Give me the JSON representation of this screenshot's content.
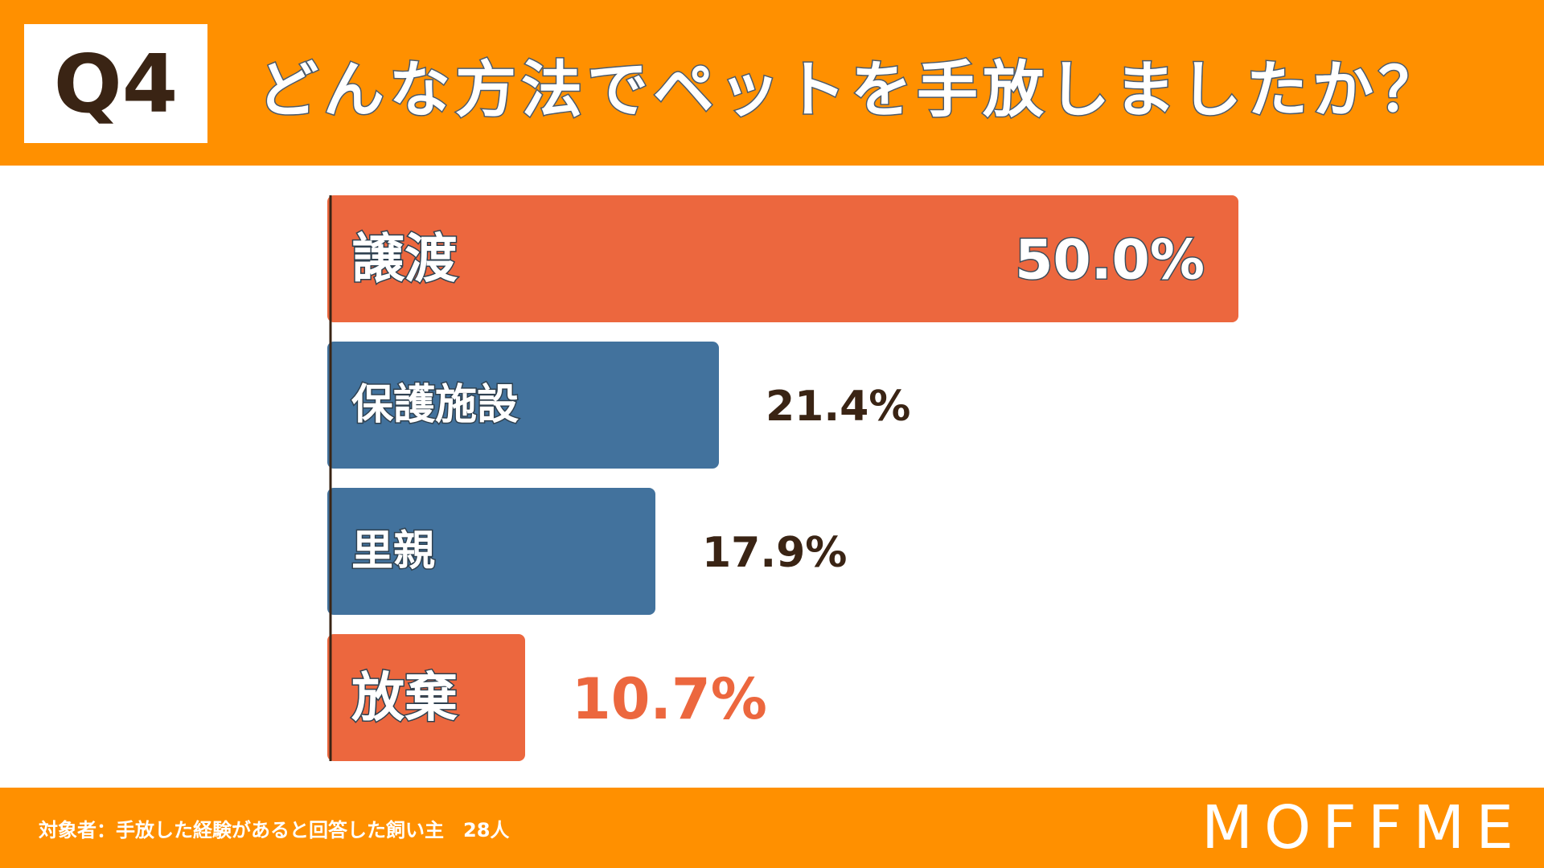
{
  "header": {
    "badge": "Q4",
    "title": "どんな方法でペットを手放しましたか？"
  },
  "footer": {
    "note": "対象者：手放した経験があると回答した飼い主　28人",
    "logo": "MOFFME"
  },
  "colors": {
    "header_bg": "#FF9000",
    "highlight": "#EC673E",
    "normal": "#42729D",
    "dark_text": "#3A2414"
  },
  "chart_data": {
    "type": "bar",
    "orientation": "horizontal",
    "categories": [
      "譲渡",
      "保護施設",
      "里親",
      "放棄"
    ],
    "values": [
      50.0,
      21.4,
      17.9,
      10.7
    ],
    "value_labels": [
      "50.0%",
      "21.4%",
      "17.9%",
      "10.7%"
    ],
    "highlight": [
      true,
      false,
      false,
      true
    ],
    "xlim": [
      0,
      50
    ],
    "unit": "%",
    "grid": false,
    "legend": "none"
  }
}
